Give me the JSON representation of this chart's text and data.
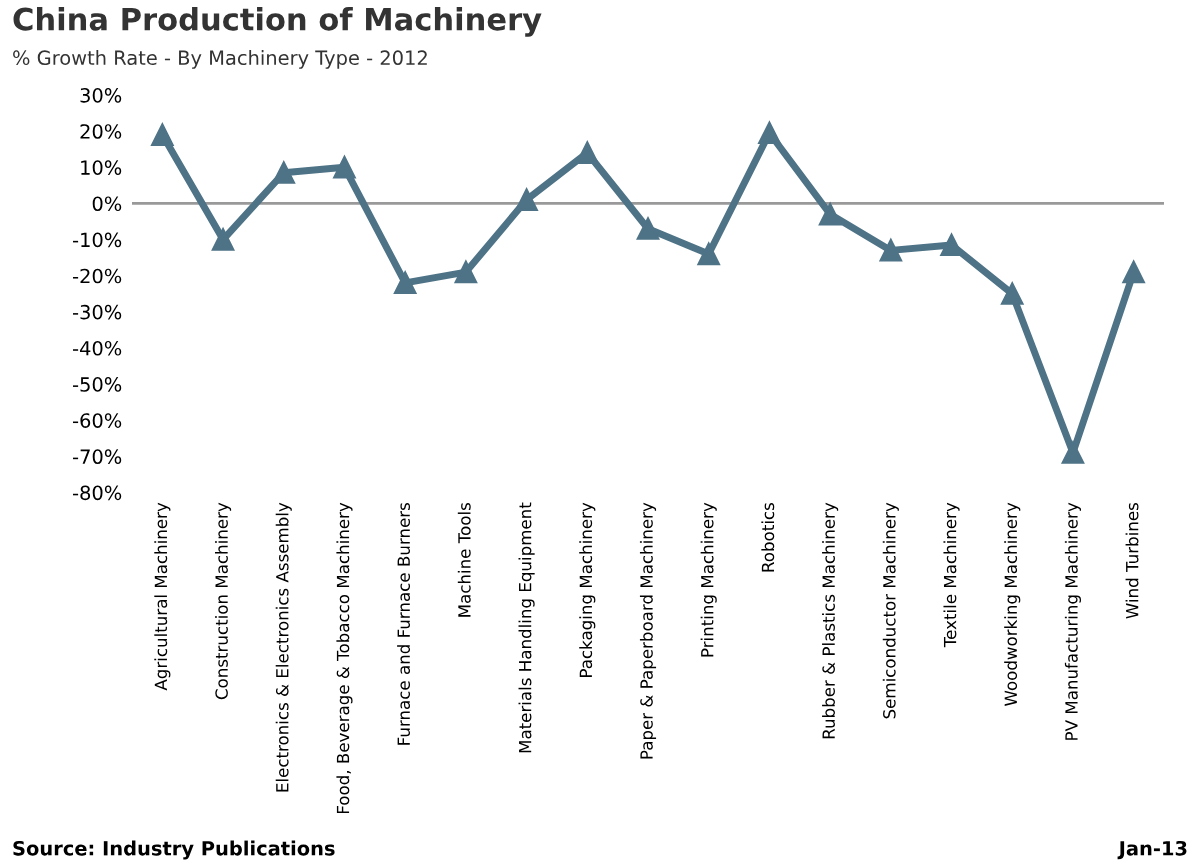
{
  "chart_data": {
    "type": "line",
    "title": "China Production of Machinery",
    "subtitle": "% Growth Rate - By Machinery Type - 2012",
    "categories": [
      "Agricultural Machinery",
      "Construction Machinery",
      "Electronics & Electronics Assembly",
      "Food, Beverage & Tobacco Machinery",
      "Furnace and Furnace Burners",
      "Machine Tools",
      "Materials Handling Equipment",
      "Packaging Machinery",
      "Paper & Paperboard Machinery",
      "Printing Machinery",
      "Robotics",
      "Rubber & Plastics Machinery",
      "Semiconductor Machinery",
      "Textile Machinery",
      "Woodworking Machinery",
      "PV Manufacturing Machinery",
      "Wind Turbines"
    ],
    "series": [
      {
        "color": "#4e7387",
        "values": [
          19,
          -10,
          8.5,
          10,
          -22,
          -19,
          1,
          14,
          -7,
          -14,
          19.5,
          -3,
          -13,
          -11.5,
          -25,
          -69,
          -19
        ]
      }
    ],
    "ylim": [
      -80,
      30
    ],
    "yticks": [
      {
        "value": 30,
        "label": "30%"
      },
      {
        "value": 20,
        "label": "20%"
      },
      {
        "value": 10,
        "label": "10%"
      },
      {
        "value": 0,
        "label": "0%"
      },
      {
        "value": -10,
        "label": "-10%"
      },
      {
        "value": -20,
        "label": "-20%"
      },
      {
        "value": -30,
        "label": "-30%"
      },
      {
        "value": -40,
        "label": "-40%"
      },
      {
        "value": -50,
        "label": "-50%"
      },
      {
        "value": -60,
        "label": "-60%"
      },
      {
        "value": -70,
        "label": "-70%"
      },
      {
        "value": -80,
        "label": "-80%"
      }
    ],
    "marker": "triangle",
    "line_style": "solid",
    "grid": false,
    "ref_lines": [
      {
        "axis": "y",
        "value": 0,
        "color": "#999999",
        "line_style": "solid"
      }
    ],
    "annotations": [
      "Source: Industry Publications",
      "Jan-13"
    ]
  }
}
